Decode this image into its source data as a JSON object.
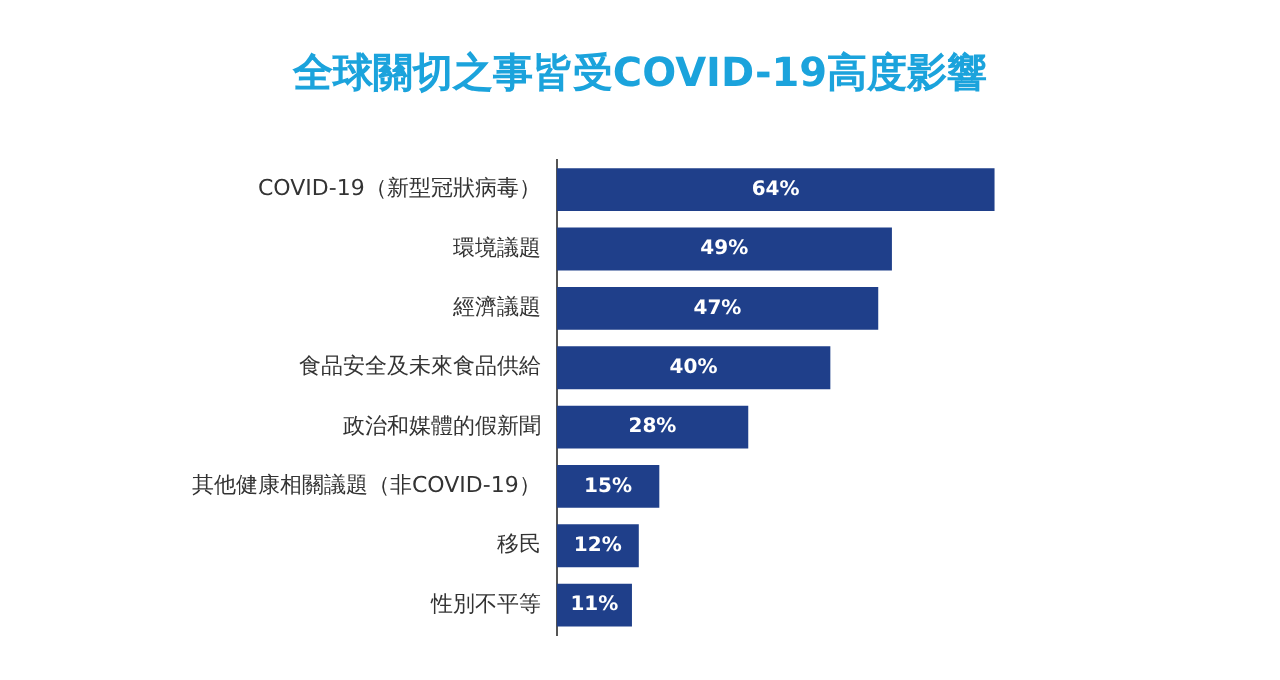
{
  "chart_data": {
    "type": "bar",
    "orientation": "horizontal",
    "title": "全球關切之事皆受COVID-19高度影響",
    "categories": [
      "COVID-19（新型冠狀病毒）",
      "環境議題",
      "經濟議題",
      "食品安全及未來食品供給",
      "政治和媒體的假新聞",
      "其他健康相關議題（非COVID-19）",
      "移民",
      "性別不平等"
    ],
    "values": [
      64,
      49,
      47,
      40,
      28,
      15,
      12,
      11
    ],
    "value_labels": [
      "64%",
      "49%",
      "47%",
      "40%",
      "28%",
      "15%",
      "12%",
      "11%"
    ],
    "color": "#1f3f8a",
    "legend": false,
    "tick_labels": "y"
  }
}
